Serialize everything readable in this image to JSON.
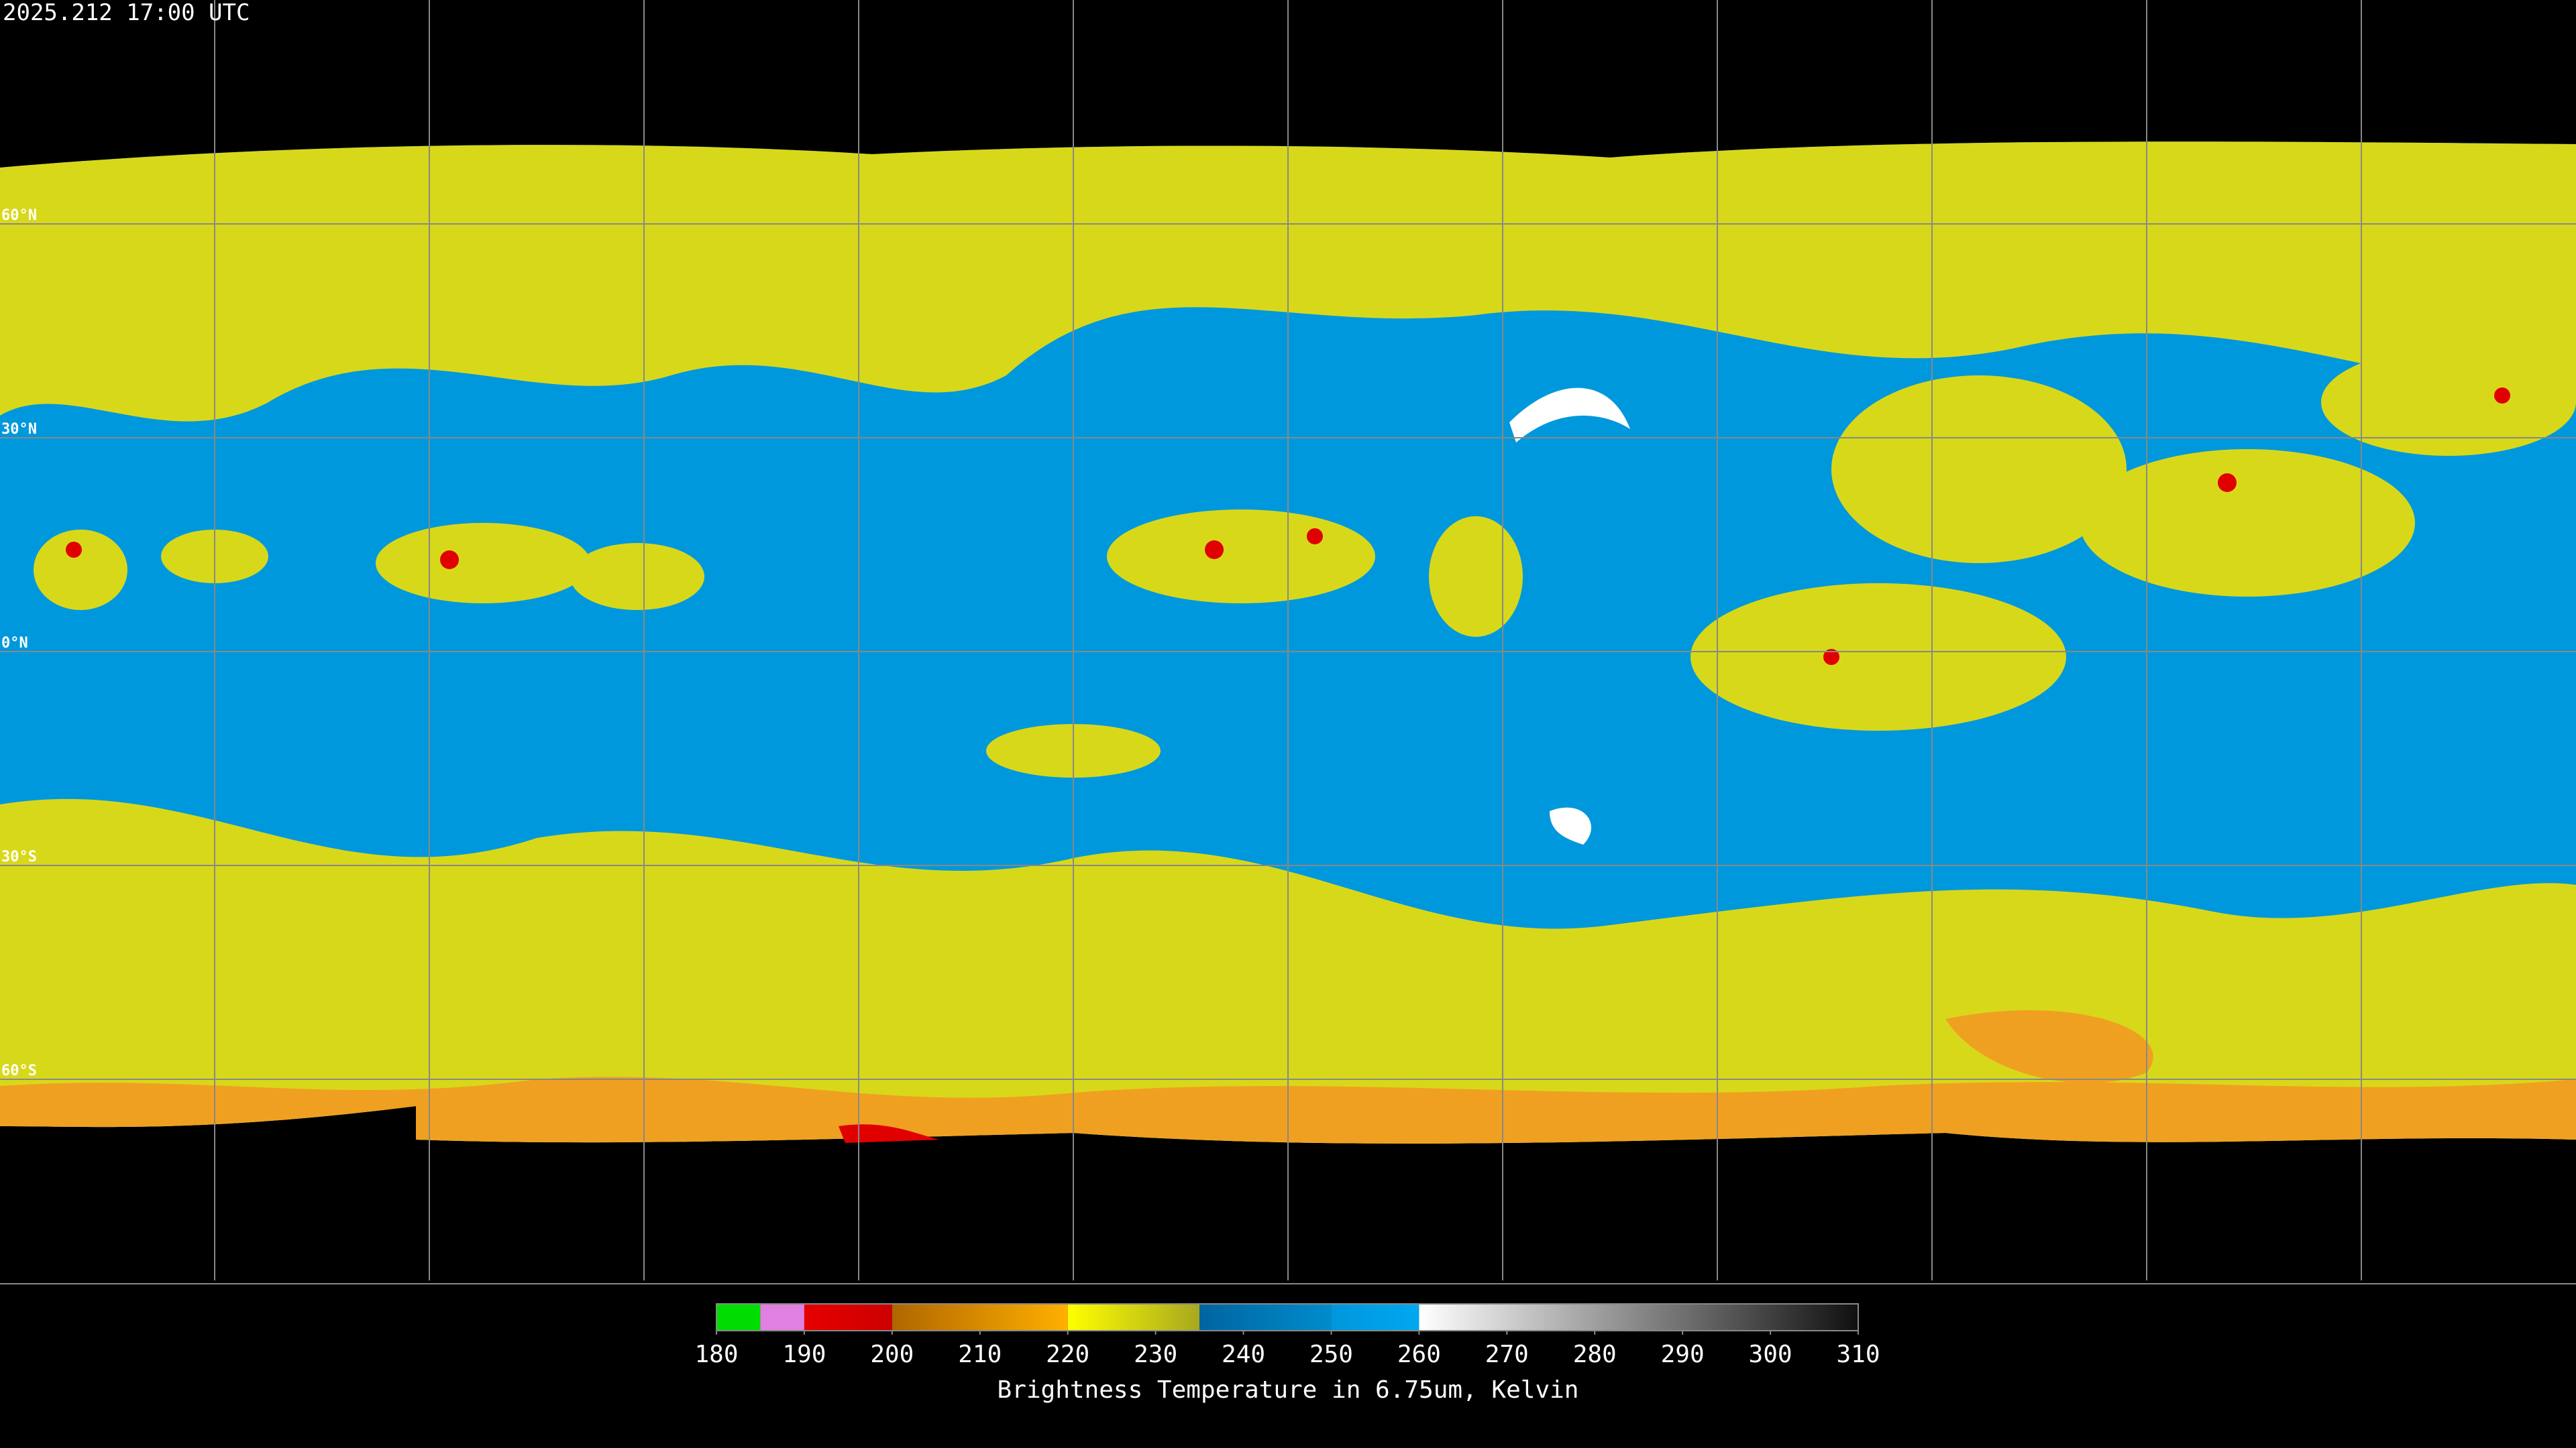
{
  "header": {
    "timestamp": "2025.212 17:00 UTC"
  },
  "grid": {
    "latitudes": [
      {
        "value": 60,
        "label": "60°N"
      },
      {
        "value": 30,
        "label": "30°N"
      },
      {
        "value": 0,
        "label": "0°N"
      },
      {
        "value": -30,
        "label": "30°S"
      },
      {
        "value": -60,
        "label": "60°S"
      }
    ]
  },
  "colorbar": {
    "label": "Brightness Temperature in 6.75um, Kelvin",
    "ticks": [
      180,
      190,
      200,
      210,
      220,
      230,
      240,
      250,
      260,
      270,
      280,
      290,
      300,
      310
    ],
    "segments": [
      {
        "from": 180,
        "to": 185,
        "colors": [
          "#00dd00",
          "#00dd00"
        ]
      },
      {
        "from": 185,
        "to": 190,
        "colors": [
          "#e080e0",
          "#e080e0"
        ]
      },
      {
        "from": 190,
        "to": 200,
        "colors": [
          "#e60000",
          "#cc0000"
        ]
      },
      {
        "from": 200,
        "to": 220,
        "colors": [
          "#b06600",
          "#ffb000"
        ]
      },
      {
        "from": 220,
        "to": 235,
        "colors": [
          "#ffff00",
          "#a8a820"
        ]
      },
      {
        "from": 235,
        "to": 250,
        "colors": [
          "#0064a0",
          "#008ccc"
        ]
      },
      {
        "from": 250,
        "to": 260,
        "colors": [
          "#0096dc",
          "#00a8f0"
        ]
      },
      {
        "from": 260,
        "to": 310,
        "colors": [
          "#ffffff",
          "#101010"
        ]
      }
    ]
  }
}
